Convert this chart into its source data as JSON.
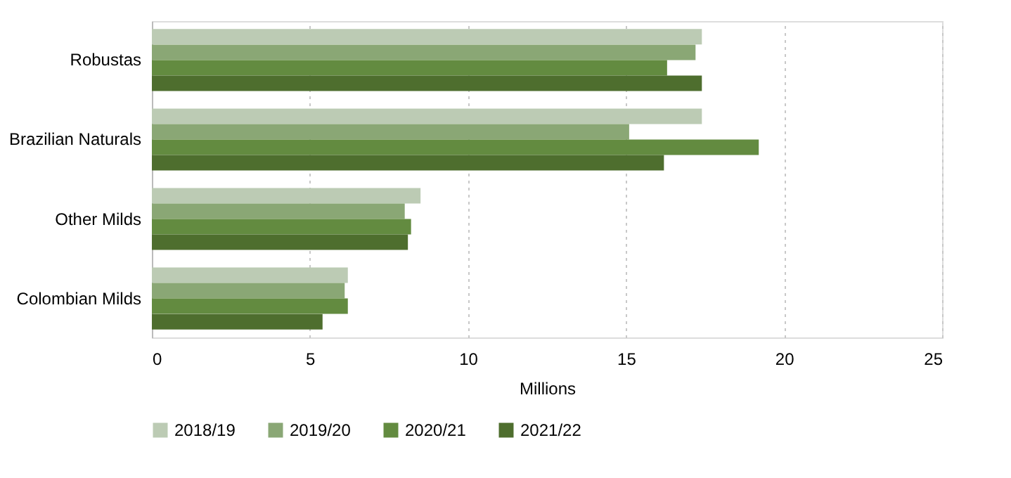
{
  "chart_data": {
    "type": "bar",
    "orientation": "horizontal",
    "xlabel": "Millions",
    "categories": [
      "Robustas",
      "Brazilian Naturals",
      "Other Milds",
      "Colombian Milds"
    ],
    "series": [
      {
        "name": "2018/19",
        "color": "#bccbb4",
        "values": [
          17.4,
          17.4,
          8.5,
          6.2
        ]
      },
      {
        "name": "2019/20",
        "color": "#8aa775",
        "values": [
          17.2,
          15.1,
          8.0,
          6.1
        ]
      },
      {
        "name": "2020/21",
        "color": "#638b40",
        "values": [
          16.3,
          19.2,
          8.2,
          6.2
        ]
      },
      {
        "name": "2021/22",
        "color": "#4e6e2e",
        "values": [
          17.4,
          16.2,
          8.1,
          5.4
        ]
      }
    ],
    "xlim": [
      0,
      25
    ],
    "xticks": [
      0,
      5,
      10,
      15,
      20,
      25
    ],
    "grid": "x",
    "legend": "bottom"
  }
}
